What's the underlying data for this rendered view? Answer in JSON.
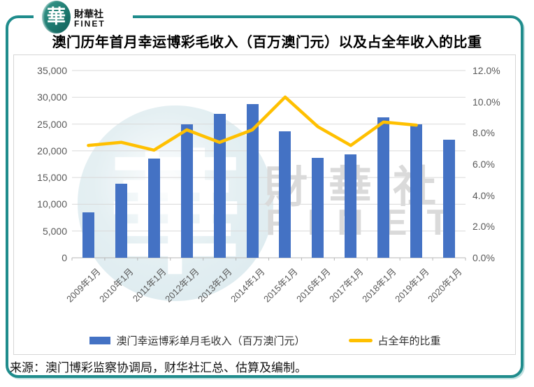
{
  "brand": {
    "logo_char": "華",
    "name_cn": "財華社",
    "name_en": "FINET"
  },
  "title": "澳门历年首月幸运博彩毛收入（百万澳门元）以及占全年收入的比重",
  "source": "来源：澳门博彩监察协调局，财华社汇总、估算及编制。",
  "watermark": {
    "text_cn": "財華社",
    "text_en": "FINET",
    "logo_char": "華"
  },
  "colors": {
    "frame_teal": "#1f8c8c",
    "bar_blue": "#4472C4",
    "line_yellow": "#FFC000",
    "grid": "#d9d9d9",
    "axis_line": "#b7b7b7",
    "axis_text": "#595959",
    "watermark_gray": "#dadada"
  },
  "chart_data": {
    "type": "bar",
    "subtype": "bar-line-combo",
    "title": "澳门历年首月幸运博彩毛收入（百万澳门元）以及占全年收入的比重",
    "categories": [
      "2009年1月",
      "2010年1月",
      "2011年1月",
      "2012年1月",
      "2013年1月",
      "2014年1月",
      "2015年1月",
      "2016年1月",
      "2017年1月",
      "2018年1月",
      "2019年1月",
      "2020年1月"
    ],
    "series": [
      {
        "name": "澳门幸运博彩单月毛收入（百万澳门元）",
        "type": "bar",
        "axis": "left",
        "color": "#4472C4",
        "values": [
          8500,
          13900,
          18600,
          25000,
          26900,
          28700,
          23700,
          18700,
          19300,
          26300,
          24900,
          22100
        ]
      },
      {
        "name": "占全年的比重",
        "type": "line",
        "axis": "right",
        "color": "#FFC000",
        "values": [
          7.2,
          7.4,
          6.9,
          8.2,
          7.4,
          8.2,
          10.3,
          8.4,
          7.2,
          8.7,
          8.5,
          null
        ]
      }
    ],
    "left_axis": {
      "min": 0,
      "max": 35000,
      "ticks": [
        "0",
        "5,000",
        "10,000",
        "15,000",
        "20,000",
        "25,000",
        "30,000",
        "35,000"
      ]
    },
    "right_axis": {
      "min": 0,
      "max": 12,
      "ticks": [
        "0.0%",
        "2.0%",
        "4.0%",
        "6.0%",
        "8.0%",
        "10.0%",
        "12.0%"
      ]
    },
    "grid": true,
    "legend_position": "bottom"
  }
}
